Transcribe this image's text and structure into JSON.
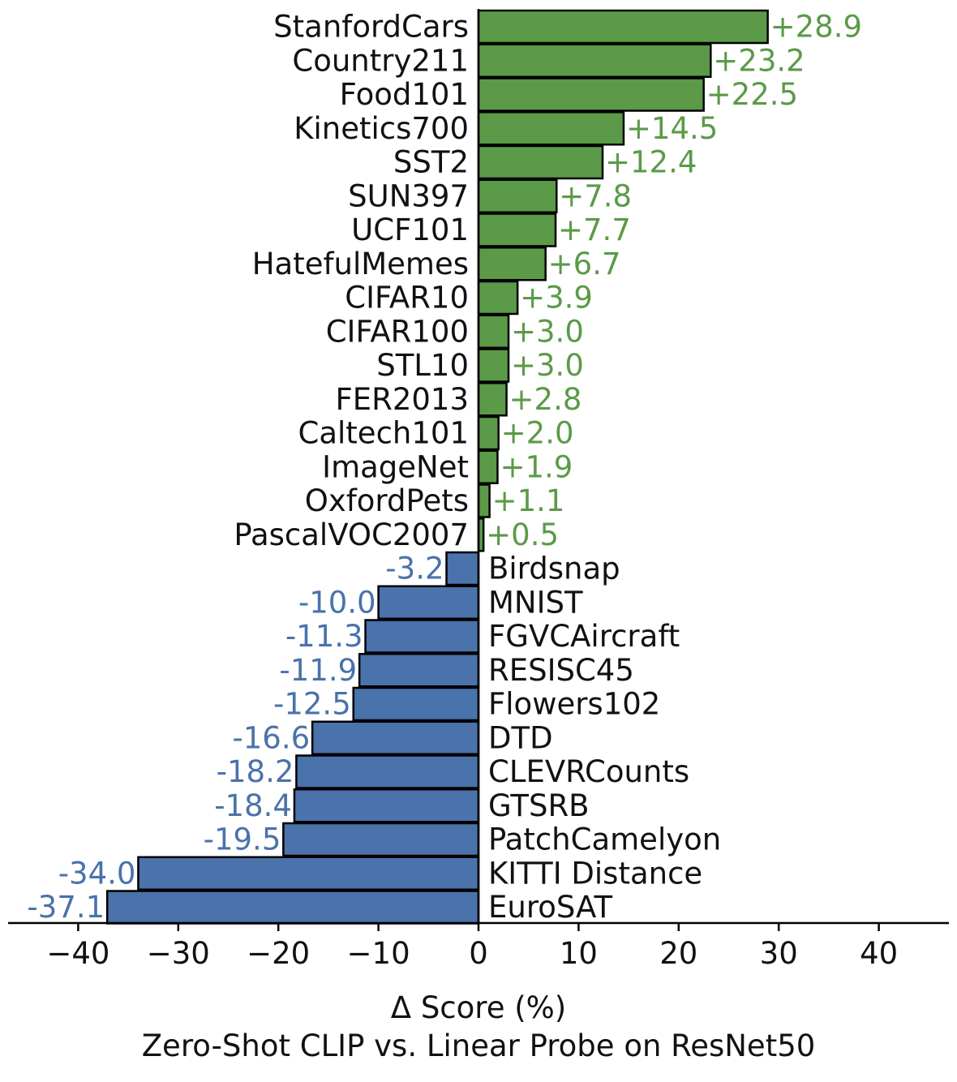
{
  "chart_data": {
    "type": "bar",
    "orientation": "horizontal",
    "title": "Zero-Shot CLIP vs. Linear Probe on ResNet50",
    "xlabel": "Δ Score (%)",
    "ylabel": "",
    "xlim": [
      -47,
      47
    ],
    "xticks": [
      -40,
      -30,
      -20,
      -10,
      0,
      10,
      20,
      30,
      40
    ],
    "xtick_labels": [
      "−40",
      "−30",
      "−20",
      "−10",
      "0",
      "10",
      "20",
      "30",
      "40"
    ],
    "grid": false,
    "categories": [
      "StanfordCars",
      "Country211",
      "Food101",
      "Kinetics700",
      "SST2",
      "SUN397",
      "UCF101",
      "HatefulMemes",
      "CIFAR10",
      "CIFAR100",
      "STL10",
      "FER2013",
      "Caltech101",
      "ImageNet",
      "OxfordPets",
      "PascalVOC2007",
      "Birdsnap",
      "MNIST",
      "FGVCAircraft",
      "RESISC45",
      "Flowers102",
      "DTD",
      "CLEVRCounts",
      "GTSRB",
      "PatchCamelyon",
      "KITTI Distance",
      "EuroSAT"
    ],
    "values": [
      28.9,
      23.2,
      22.5,
      14.5,
      12.4,
      7.8,
      7.7,
      6.7,
      3.9,
      3.0,
      3.0,
      2.8,
      2.0,
      1.9,
      1.1,
      0.5,
      -3.2,
      -10.0,
      -11.3,
      -11.9,
      -12.5,
      -16.6,
      -18.2,
      -18.4,
      -19.5,
      -34.0,
      -37.1
    ],
    "value_labels": [
      "+28.9",
      "+23.2",
      "+22.5",
      "+14.5",
      "+12.4",
      "+7.8",
      "+7.7",
      "+6.7",
      "+3.9",
      "+3.0",
      "+3.0",
      "+2.8",
      "+2.0",
      "+1.9",
      "+1.1",
      "+0.5",
      "-3.2",
      "-10.0",
      "-11.3",
      "-11.9",
      "-12.5",
      "-16.6",
      "-18.2",
      "-18.4",
      "-19.5",
      "-34.0",
      "-37.1"
    ],
    "colors": {
      "positive": "#5b9a48",
      "negative": "#4a72ab",
      "positive_text": "#5b9a48",
      "negative_text": "#4a72ab",
      "outline": "#000000",
      "text": "#111111"
    }
  }
}
